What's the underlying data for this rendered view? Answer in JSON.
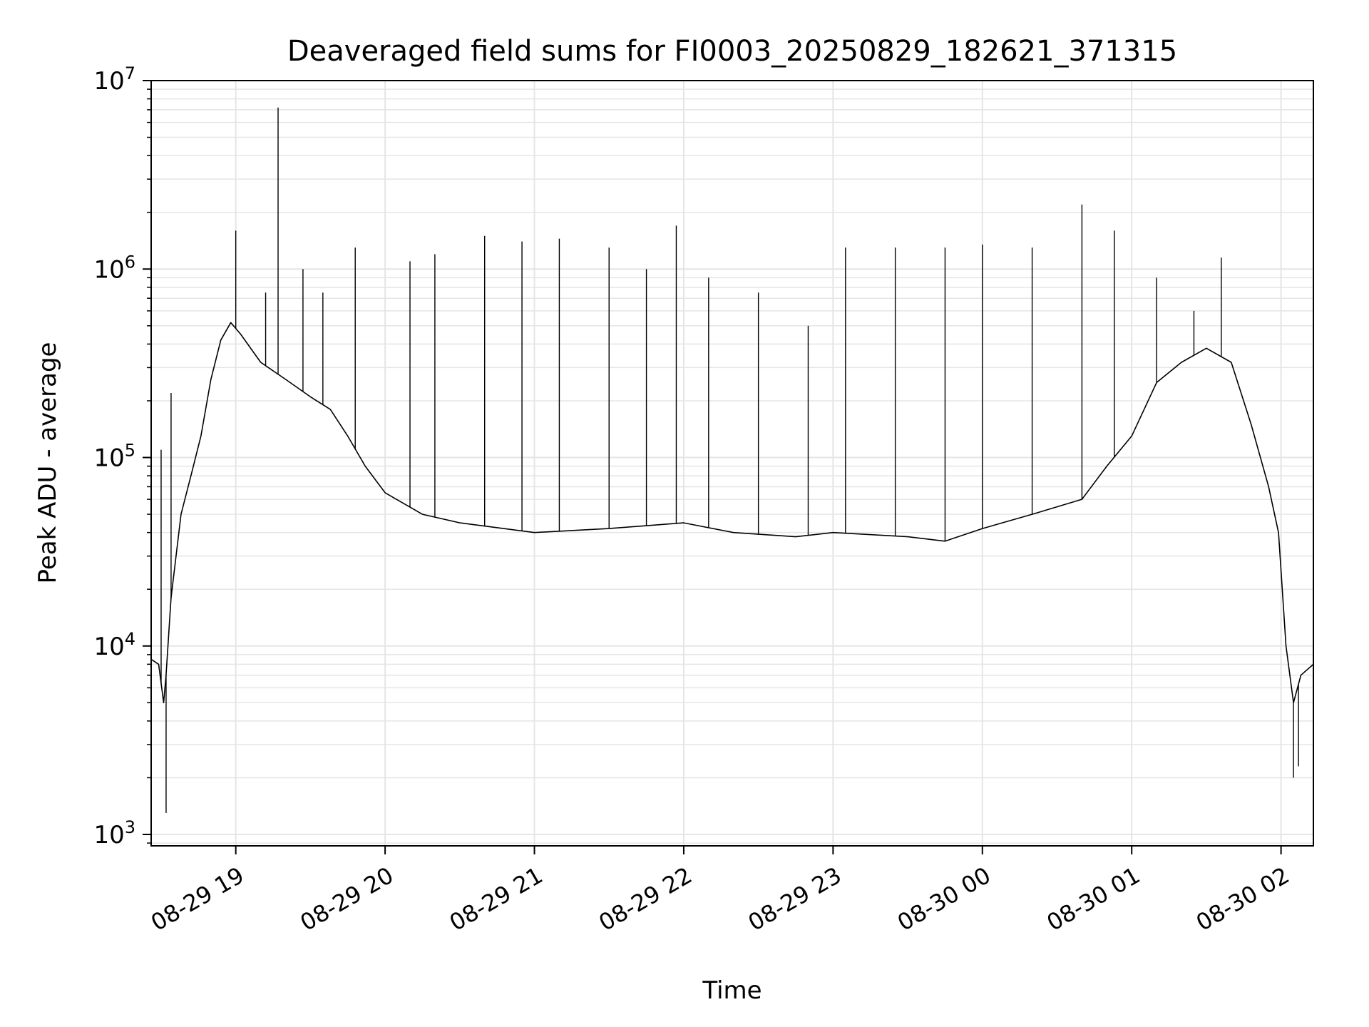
{
  "chart_data": {
    "type": "line",
    "title": "Deaveraged field sums for FI0003_20250829_182621_371315",
    "xlabel": "Time",
    "ylabel": "Peak ADU - average",
    "yscale": "log",
    "xlim": [
      "2025-08-29 18:26",
      "2025-08-30 02:13"
    ],
    "ylim": [
      870,
      10000000
    ],
    "x_ticks": [
      "08-29 19",
      "08-29 20",
      "08-29 21",
      "08-29 22",
      "08-29 23",
      "08-30 00",
      "08-30 01",
      "08-30 02"
    ],
    "x_tick_times": [
      "2025-08-29 19:00",
      "2025-08-29 20:00",
      "2025-08-29 21:00",
      "2025-08-29 22:00",
      "2025-08-29 23:00",
      "2025-08-30 00:00",
      "2025-08-30 01:00",
      "2025-08-30 02:00"
    ],
    "y_ticks": [
      1000,
      10000,
      100000,
      1000000,
      10000000
    ],
    "y_tick_labels": [
      {
        "base": "10",
        "exp": "3"
      },
      {
        "base": "10",
        "exp": "4"
      },
      {
        "base": "10",
        "exp": "5"
      },
      {
        "base": "10",
        "exp": "6"
      },
      {
        "base": "10",
        "exp": "7"
      }
    ],
    "grid": true,
    "line_color": "#000000",
    "series": [
      {
        "baseline": [
          [
            "2025-08-29 18:26",
            8500
          ],
          [
            "2025-08-29 18:29",
            8000
          ],
          [
            "2025-08-29 18:31",
            5000
          ],
          [
            "2025-08-29 18:32",
            7000
          ],
          [
            "2025-08-29 18:34",
            18000
          ],
          [
            "2025-08-29 18:38",
            50000
          ],
          [
            "2025-08-29 18:42",
            80000
          ],
          [
            "2025-08-29 18:46",
            130000
          ],
          [
            "2025-08-29 18:50",
            260000
          ],
          [
            "2025-08-29 18:54",
            420000
          ],
          [
            "2025-08-29 18:58",
            520000
          ],
          [
            "2025-08-29 19:02",
            450000
          ],
          [
            "2025-08-29 19:10",
            320000
          ],
          [
            "2025-08-29 19:20",
            260000
          ],
          [
            "2025-08-29 19:30",
            210000
          ],
          [
            "2025-08-29 19:38",
            180000
          ],
          [
            "2025-08-29 19:45",
            130000
          ],
          [
            "2025-08-29 19:52",
            90000
          ],
          [
            "2025-08-29 20:00",
            65000
          ],
          [
            "2025-08-29 20:15",
            50000
          ],
          [
            "2025-08-29 20:30",
            45000
          ],
          [
            "2025-08-29 21:00",
            40000
          ],
          [
            "2025-08-29 21:30",
            42000
          ],
          [
            "2025-08-29 22:00",
            45000
          ],
          [
            "2025-08-29 22:20",
            40000
          ],
          [
            "2025-08-29 22:45",
            38000
          ],
          [
            "2025-08-29 23:00",
            40000
          ],
          [
            "2025-08-29 23:30",
            38000
          ],
          [
            "2025-08-29 23:45",
            36000
          ],
          [
            "2025-08-30 00:00",
            42000
          ],
          [
            "2025-08-30 00:20",
            50000
          ],
          [
            "2025-08-30 00:40",
            60000
          ],
          [
            "2025-08-30 00:50",
            90000
          ],
          [
            "2025-08-30 01:00",
            130000
          ],
          [
            "2025-08-30 01:10",
            250000
          ],
          [
            "2025-08-30 01:20",
            320000
          ],
          [
            "2025-08-30 01:30",
            380000
          ],
          [
            "2025-08-30 01:40",
            320000
          ],
          [
            "2025-08-30 01:48",
            150000
          ],
          [
            "2025-08-30 01:55",
            70000
          ],
          [
            "2025-08-30 01:59",
            40000
          ],
          [
            "2025-08-30 02:02",
            10000
          ],
          [
            "2025-08-30 02:05",
            5000
          ],
          [
            "2025-08-30 02:08",
            7000
          ],
          [
            "2025-08-30 02:13",
            8000
          ]
        ],
        "spikes": [
          [
            "2025-08-29 18:32",
            1300
          ],
          [
            "2025-08-29 18:30",
            110000
          ],
          [
            "2025-08-29 18:34",
            220000
          ],
          [
            "2025-08-29 19:00",
            1600000
          ],
          [
            "2025-08-29 19:12",
            750000
          ],
          [
            "2025-08-29 19:17",
            7200000
          ],
          [
            "2025-08-29 19:27",
            1000000
          ],
          [
            "2025-08-29 19:35",
            750000
          ],
          [
            "2025-08-29 19:48",
            1300000
          ],
          [
            "2025-08-29 20:10",
            1100000
          ],
          [
            "2025-08-29 20:20",
            1200000
          ],
          [
            "2025-08-29 20:40",
            1500000
          ],
          [
            "2025-08-29 20:55",
            1400000
          ],
          [
            "2025-08-29 21:10",
            1450000
          ],
          [
            "2025-08-29 21:30",
            1300000
          ],
          [
            "2025-08-29 21:45",
            1000000
          ],
          [
            "2025-08-29 21:57",
            1700000
          ],
          [
            "2025-08-29 22:10",
            900000
          ],
          [
            "2025-08-29 22:30",
            750000
          ],
          [
            "2025-08-29 22:50",
            500000
          ],
          [
            "2025-08-29 23:05",
            1300000
          ],
          [
            "2025-08-29 23:25",
            1300000
          ],
          [
            "2025-08-29 23:45",
            1300000
          ],
          [
            "2025-08-30 00:00",
            1350000
          ],
          [
            "2025-08-30 00:20",
            1300000
          ],
          [
            "2025-08-30 00:40",
            2200000
          ],
          [
            "2025-08-30 00:53",
            1600000
          ],
          [
            "2025-08-30 01:10",
            900000
          ],
          [
            "2025-08-30 01:25",
            600000
          ],
          [
            "2025-08-30 01:36",
            1150000
          ],
          [
            "2025-08-30 02:05",
            2000
          ],
          [
            "2025-08-30 02:07",
            2300
          ]
        ]
      }
    ]
  }
}
